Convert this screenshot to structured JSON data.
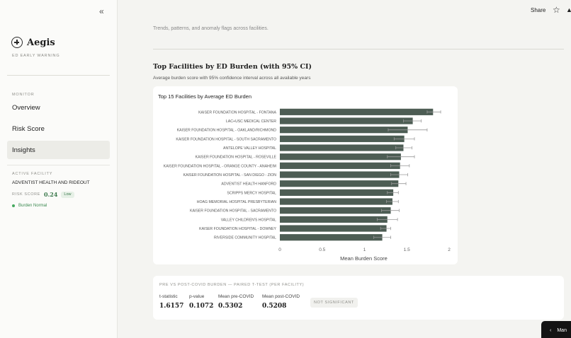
{
  "sidebar": {
    "collapse_label": "«",
    "brand": {
      "name": "Aegis",
      "subtitle": "ED EARLY WARNING"
    },
    "monitor_label": "MONITOR",
    "nav": [
      {
        "label": "Overview"
      },
      {
        "label": "Risk Score"
      },
      {
        "label": "Insights"
      }
    ],
    "active_facility_label": "ACTIVE FACILITY",
    "facility_name": "ADVENTIST HEALTH AND RIDEOUT",
    "risk_score_label": "RISK SCORE",
    "risk_score_value": "0.24",
    "risk_level": "Low",
    "burden_status": "Burden Normal"
  },
  "topbar": {
    "share_label": "Share",
    "star_icon": "☆",
    "more_icon": "▲"
  },
  "main": {
    "page_subtitle": "Trends, patterns, and anomaly flags across facilities.",
    "section_title": "Top Facilities by ED Burden (with 95% CI)",
    "section_subtitle": "Average burden score with 95% confidence interval across all available years"
  },
  "chart_data": {
    "type": "bar",
    "orientation": "horizontal",
    "title": "Top 15 Facilities by Average ED Burden",
    "xlabel": "Mean Burden Score",
    "xlim": [
      0,
      2
    ],
    "xticks": [
      "0",
      "0.5",
      "1",
      "1.5",
      "2"
    ],
    "tick_values": [
      0,
      0.5,
      1,
      1.5,
      2
    ],
    "bar_color": "#4d5d54",
    "categories": [
      "KAISER FOUNDATION HOSPITAL - FONTANA",
      "LAC+USC MEDICAL CENTER",
      "KAISER FOUNDATION HOSPITAL - OAKLAND/RICHMOND",
      "KAISER FOUNDATION HOSPITAL - SOUTH SACRAMENTO",
      "ANTELOPE VALLEY HOSPITAL",
      "KAISER FOUNDATION HOSPITAL - ROSEVILLE",
      "KAISER FOUNDATION HOSPITAL - ORANGE COUNTY - ANAHEIM",
      "KAISER FOUNDATION HOSPITAL - SAN DIEGO - ZION",
      "ADVENTIST HEALTH HANFORD",
      "SCRIPPS MERCY HOSPITAL",
      "HOAG MEMORIAL HOSPITAL PRESBYTERIAN",
      "KAISER FOUNDATION HOSPITAL - SACRAMENTO",
      "VALLEY CHILDREN'S HOSPITAL",
      "KAISER FOUNDATION HOSPITAL - DOWNEY",
      "RIVERSIDE COMMUNITY HOSPITAL"
    ],
    "values": [
      1.81,
      1.57,
      1.51,
      1.47,
      1.46,
      1.43,
      1.42,
      1.41,
      1.4,
      1.34,
      1.33,
      1.31,
      1.27,
      1.26,
      1.21
    ],
    "ci_low": [
      1.74,
      1.46,
      1.28,
      1.35,
      1.37,
      1.27,
      1.31,
      1.31,
      1.32,
      1.27,
      1.26,
      1.2,
      1.15,
      1.19,
      1.11
    ],
    "ci_high": [
      1.9,
      1.67,
      1.74,
      1.59,
      1.56,
      1.59,
      1.53,
      1.51,
      1.49,
      1.4,
      1.4,
      1.41,
      1.39,
      1.31,
      1.31
    ]
  },
  "ttest": {
    "title": "PRE VS POST-COVID BURDEN — PAIRED T-TEST (PER FACILITY)",
    "stats": [
      {
        "label": "t-statistic",
        "value": "1.6157"
      },
      {
        "label": "p-value",
        "value": "0.1072"
      },
      {
        "label": "Mean pre-COVID",
        "value": "0.5302"
      },
      {
        "label": "Mean post-COVID",
        "value": "0.5208"
      }
    ],
    "significance": "NOT SIGNIFICANT"
  },
  "manage_button": {
    "label": "Man"
  }
}
